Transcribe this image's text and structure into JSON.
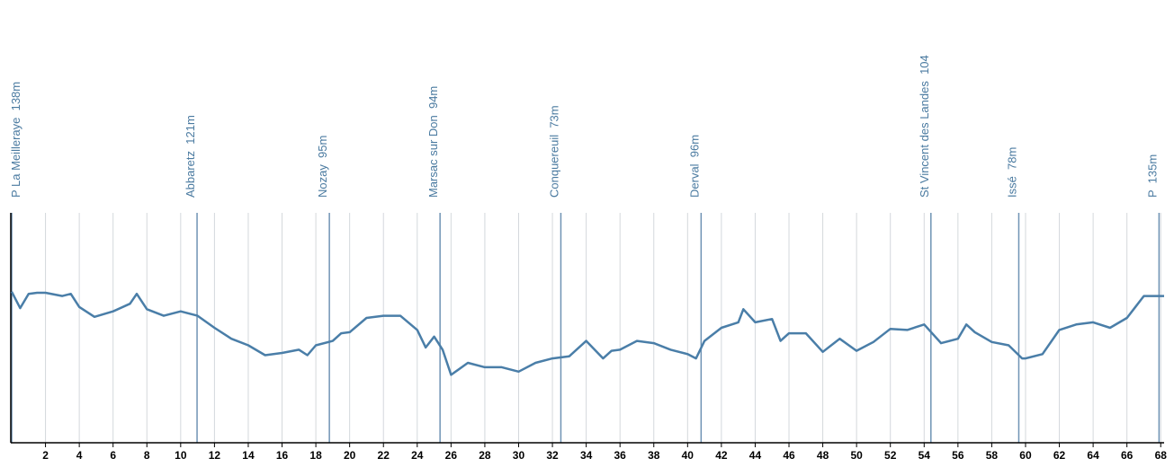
{
  "chart_data": {
    "type": "line",
    "x": [
      0,
      0.5,
      1,
      1.5,
      2,
      3,
      3.5,
      4,
      4.9,
      6,
      7,
      7.4,
      8,
      9,
      10,
      11,
      12,
      13,
      14,
      15,
      16,
      17,
      17.5,
      18,
      19,
      19.5,
      20,
      21,
      22,
      23,
      24,
      24.5,
      25,
      25.5,
      26,
      27,
      28,
      29,
      30,
      31,
      32,
      33,
      34,
      35,
      35.5,
      36,
      37,
      38,
      39,
      40,
      40.5,
      41,
      42,
      43,
      43.3,
      44,
      45,
      45.5,
      46,
      47,
      48,
      49,
      50,
      51,
      52,
      53,
      54,
      55,
      56,
      56.5,
      57,
      58,
      59,
      59.8,
      60,
      61,
      62,
      63,
      64,
      65,
      66,
      66.5,
      67,
      68,
      68.2
    ],
    "values": [
      138,
      123,
      136,
      137,
      137,
      134,
      136,
      124,
      115,
      120,
      127,
      136,
      122,
      116,
      120,
      116,
      105,
      95,
      89,
      80,
      82,
      85,
      80,
      89,
      93,
      100,
      101,
      114,
      116,
      116,
      103,
      87,
      97,
      85,
      62,
      73,
      69,
      69,
      65,
      73,
      77,
      79,
      93,
      77,
      84,
      85,
      93,
      91,
      85,
      81,
      77,
      93,
      105,
      110,
      122,
      110,
      113,
      93,
      100,
      100,
      83,
      95,
      84,
      92,
      104,
      103,
      108,
      91,
      95,
      108,
      101,
      92,
      89,
      77,
      77,
      81,
      103,
      108,
      110,
      105,
      114,
      124,
      134,
      134,
      134
    ],
    "color": "#4a7ea8",
    "xlim": [
      0,
      68.2
    ],
    "xticks": [
      2,
      4,
      6,
      8,
      10,
      12,
      14,
      16,
      18,
      20,
      22,
      24,
      26,
      28,
      30,
      32,
      34,
      36,
      38,
      40,
      42,
      44,
      46,
      48,
      50,
      52,
      54,
      56,
      58,
      60,
      62,
      64,
      66,
      68
    ],
    "ylim": [
      0,
      210
    ],
    "grid": true,
    "waypoints": [
      {
        "x": 0,
        "label": "P La Meilleraye  138m"
      },
      {
        "x": 10.97,
        "label": "Abbaretz  121m"
      },
      {
        "x": 18.8,
        "label": "Nozay  95m"
      },
      {
        "x": 25.35,
        "label": "Marsac sur Don  94m"
      },
      {
        "x": 32.5,
        "label": "Conquereuil  73m"
      },
      {
        "x": 40.8,
        "label": "Derval  96m"
      },
      {
        "x": 54.4,
        "label": "St Vincent des Landes  104"
      },
      {
        "x": 59.6,
        "label": "Issé  78m"
      },
      {
        "x": 67.9,
        "label": "P  135m"
      }
    ]
  }
}
